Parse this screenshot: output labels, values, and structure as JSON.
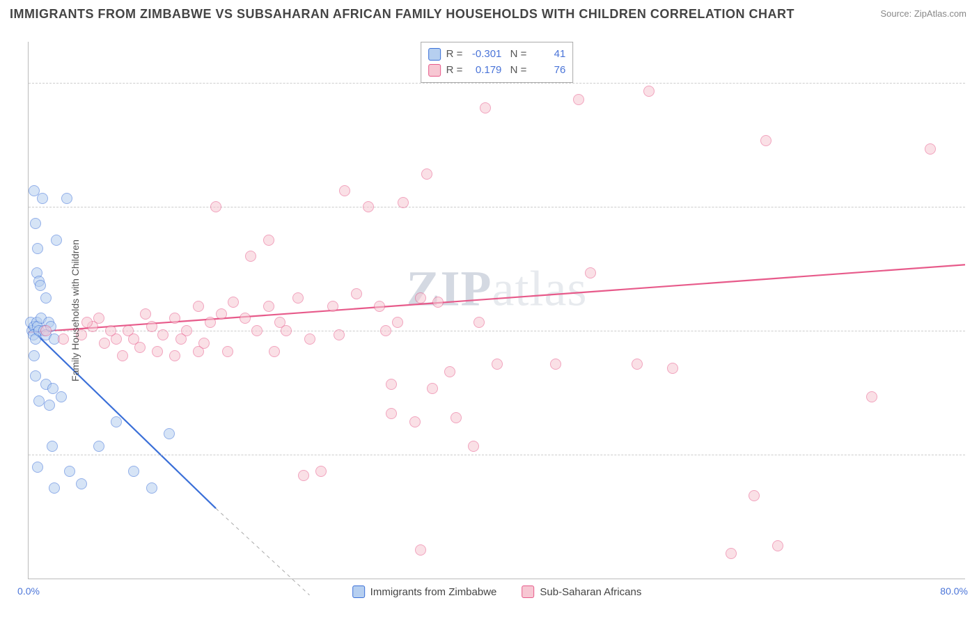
{
  "title": "IMMIGRANTS FROM ZIMBABWE VS SUBSAHARAN AFRICAN FAMILY HOUSEHOLDS WITH CHILDREN CORRELATION CHART",
  "source": "Source: ZipAtlas.com",
  "ylabel": "Family Households with Children",
  "watermark_a": "ZIP",
  "watermark_b": "atlas",
  "chart": {
    "type": "scatter",
    "xlim": [
      0,
      80
    ],
    "ylim": [
      0,
      65
    ],
    "yticks": [
      15.0,
      30.0,
      45.0,
      60.0
    ],
    "xtick_left": "0.0%",
    "xtick_right": "80.0%",
    "grid_color": "#cccccc",
    "axis_color": "#bbbbbb",
    "background_color": "#ffffff",
    "tick_color": "#4a74d8",
    "label_color": "#555555",
    "title_color": "#444444",
    "title_fontsize": 18,
    "label_fontsize": 14,
    "point_radius": 8,
    "point_opacity": 0.55
  },
  "series": [
    {
      "name": "Immigrants from Zimbabwe",
      "fill": "#b6cff0",
      "stroke": "#3a6fd8",
      "trend": {
        "x1": 0,
        "y1": 30.5,
        "x2": 16,
        "y2": 8.5,
        "extend_x2": 24,
        "extend_y2": -2,
        "width": 2.2
      },
      "stats": {
        "R": "-0.301",
        "N": "41"
      },
      "points": [
        [
          0.2,
          31
        ],
        [
          0.3,
          30
        ],
        [
          0.5,
          30.5
        ],
        [
          0.4,
          29.5
        ],
        [
          0.7,
          31
        ],
        [
          0.8,
          30.5
        ],
        [
          0.6,
          29
        ],
        [
          0.9,
          30
        ],
        [
          1.1,
          31.5
        ],
        [
          1.3,
          30
        ],
        [
          1.5,
          29.5
        ],
        [
          1.7,
          31
        ],
        [
          1.9,
          30.5
        ],
        [
          2.2,
          29
        ],
        [
          0.5,
          47
        ],
        [
          1.2,
          46
        ],
        [
          3.3,
          46
        ],
        [
          0.6,
          43
        ],
        [
          2.4,
          41
        ],
        [
          0.8,
          40
        ],
        [
          0.7,
          37
        ],
        [
          0.9,
          36
        ],
        [
          1.0,
          35.5
        ],
        [
          1.5,
          34
        ],
        [
          0.6,
          24.5
        ],
        [
          1.5,
          23.5
        ],
        [
          2.1,
          23
        ],
        [
          2.8,
          22
        ],
        [
          0.9,
          21.5
        ],
        [
          1.8,
          21
        ],
        [
          0.5,
          27
        ],
        [
          2.0,
          16
        ],
        [
          6.0,
          16
        ],
        [
          3.5,
          13
        ],
        [
          9.0,
          13
        ],
        [
          0.8,
          13.5
        ],
        [
          4.5,
          11.5
        ],
        [
          2.2,
          11
        ],
        [
          10.5,
          11
        ],
        [
          7.5,
          19
        ],
        [
          12.0,
          17.5
        ]
      ]
    },
    {
      "name": "Sub-Saharan Africans",
      "fill": "#f7c7d3",
      "stroke": "#e75a8a",
      "trend": {
        "x1": 0,
        "y1": 29.8,
        "x2": 80,
        "y2": 38,
        "width": 2.2
      },
      "stats": {
        "R": "0.179",
        "N": "76"
      },
      "points": [
        [
          1.5,
          30
        ],
        [
          3.0,
          29
        ],
        [
          4.5,
          29.5
        ],
        [
          5.5,
          30.5
        ],
        [
          6.5,
          28.5
        ],
        [
          7.5,
          29
        ],
        [
          8.5,
          30
        ],
        [
          9.5,
          28
        ],
        [
          10.5,
          30.5
        ],
        [
          11.5,
          29.5
        ],
        [
          12.5,
          31.5
        ],
        [
          13.5,
          30
        ],
        [
          14.5,
          33
        ],
        [
          15.5,
          31
        ],
        [
          16.5,
          32
        ],
        [
          17.5,
          33.5
        ],
        [
          18.5,
          31.5
        ],
        [
          19.5,
          30
        ],
        [
          20.5,
          33
        ],
        [
          21.5,
          31
        ],
        [
          12.5,
          27
        ],
        [
          14.5,
          27.5
        ],
        [
          6.0,
          31.5
        ],
        [
          8.0,
          27
        ],
        [
          10.0,
          32
        ],
        [
          11.0,
          27.5
        ],
        [
          13.0,
          29
        ],
        [
          15.0,
          28.5
        ],
        [
          17.0,
          27.5
        ],
        [
          19.0,
          39
        ],
        [
          23.0,
          34
        ],
        [
          26.0,
          33
        ],
        [
          28.0,
          34.5
        ],
        [
          30.0,
          33
        ],
        [
          31.5,
          31
        ],
        [
          33.5,
          34
        ],
        [
          35.0,
          33.5
        ],
        [
          22.0,
          30
        ],
        [
          24.0,
          29
        ],
        [
          26.5,
          29.5
        ],
        [
          30.5,
          30
        ],
        [
          36.0,
          25
        ],
        [
          34.5,
          23
        ],
        [
          31.0,
          20
        ],
        [
          25.0,
          13
        ],
        [
          27.0,
          47
        ],
        [
          34.0,
          49
        ],
        [
          32.0,
          45.5
        ],
        [
          29.0,
          45
        ],
        [
          20.5,
          41
        ],
        [
          16.0,
          45
        ],
        [
          39.0,
          57
        ],
        [
          53.0,
          59
        ],
        [
          47.0,
          58
        ],
        [
          63.0,
          53
        ],
        [
          77.0,
          52
        ],
        [
          48.0,
          37
        ],
        [
          45.0,
          26
        ],
        [
          52.0,
          26
        ],
        [
          55.0,
          25.5
        ],
        [
          38.0,
          16
        ],
        [
          72.0,
          22
        ],
        [
          62.0,
          10
        ],
        [
          64.0,
          4
        ],
        [
          60.0,
          3
        ],
        [
          33.0,
          19
        ],
        [
          33.5,
          3.5
        ],
        [
          23.5,
          12.5
        ],
        [
          38.5,
          31
        ],
        [
          40.0,
          26
        ],
        [
          36.5,
          19.5
        ],
        [
          31.0,
          23.5
        ],
        [
          5.0,
          31
        ],
        [
          7.0,
          30
        ],
        [
          9.0,
          29
        ],
        [
          21.0,
          27.5
        ]
      ]
    }
  ],
  "legend": {
    "items": [
      {
        "label": "Immigrants from Zimbabwe",
        "fill": "#b6cff0",
        "stroke": "#3a6fd8"
      },
      {
        "label": "Sub-Saharan Africans",
        "fill": "#f7c7d3",
        "stroke": "#e75a8a"
      }
    ]
  }
}
